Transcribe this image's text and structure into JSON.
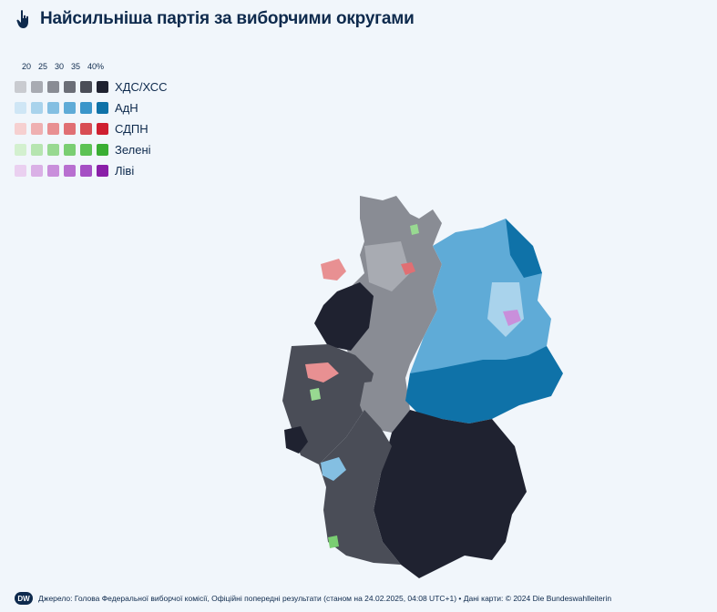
{
  "title": "Найсильніша партія за виборчими округами",
  "legend": {
    "scale": [
      "20",
      "25",
      "30",
      "35",
      "40%"
    ],
    "parties": [
      {
        "name": "ХДС/ХСС",
        "colors": [
          "#c9cbd0",
          "#a8abb2",
          "#898c94",
          "#6b6e77",
          "#4a4d57",
          "#1f2230"
        ]
      },
      {
        "name": "АдН",
        "colors": [
          "#cfe6f5",
          "#a9d3ec",
          "#84bfe2",
          "#5fabd7",
          "#3a95ca",
          "#0f72a8"
        ]
      },
      {
        "name": "СДПН",
        "colors": [
          "#f6d0d0",
          "#efb0b1",
          "#e89092",
          "#e06f73",
          "#d84d54",
          "#cf1f30"
        ]
      },
      {
        "name": "Зелені",
        "colors": [
          "#d3f0cf",
          "#b6e5b0",
          "#98d991",
          "#7ace72",
          "#5cc254",
          "#3aae33"
        ]
      },
      {
        "name": "Ліві",
        "colors": [
          "#ead0f0",
          "#dab0e6",
          "#c98fdb",
          "#b86fd0",
          "#a54fc4",
          "#8a1fa8"
        ]
      }
    ]
  },
  "footer": {
    "logo": "DW",
    "source": "Джерело: Голова Федеральної виборчої комісії, Офіційні попередні результати (станом на 24.02.2025, 04:08 UTC+1) • Дані карти: © 2024 Die Bundeswahlleiterin"
  },
  "colors": {
    "background": "#f1f6fb",
    "text": "#0e2a4d"
  }
}
